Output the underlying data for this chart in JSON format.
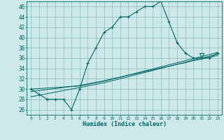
{
  "xlabel": "Humidex (Indice chaleur)",
  "bg_color": "#cce8e8",
  "grid_color": "#88bbbb",
  "line_color": "#006666",
  "xlim": [
    -0.5,
    23.5
  ],
  "ylim": [
    25,
    47
  ],
  "yticks": [
    26,
    28,
    30,
    32,
    34,
    36,
    38,
    40,
    42,
    44,
    46
  ],
  "xticks": [
    0,
    1,
    2,
    3,
    4,
    5,
    6,
    7,
    8,
    9,
    10,
    11,
    12,
    13,
    14,
    15,
    16,
    17,
    18,
    19,
    20,
    21,
    22,
    23
  ],
  "humidex_curve": [
    30,
    29,
    28,
    28,
    28,
    26,
    30,
    35,
    38,
    41,
    42,
    44,
    44,
    45,
    46,
    46,
    47,
    43,
    39,
    37,
    36,
    36,
    36,
    37
  ],
  "line1": [
    30.0,
    30.1,
    30.2,
    30.3,
    30.4,
    30.5,
    30.6,
    30.9,
    31.2,
    31.5,
    31.9,
    32.3,
    32.7,
    33.1,
    33.5,
    33.9,
    34.3,
    34.7,
    35.1,
    35.5,
    35.9,
    36.3,
    36.7,
    37.1
  ],
  "line2": [
    29.5,
    29.7,
    29.9,
    30.1,
    30.3,
    30.5,
    30.7,
    31.0,
    31.3,
    31.6,
    32.0,
    32.3,
    32.7,
    33.0,
    33.4,
    33.7,
    34.1,
    34.4,
    34.8,
    35.1,
    35.5,
    35.8,
    36.2,
    36.5
  ],
  "line3": [
    28.5,
    28.8,
    29.1,
    29.4,
    29.7,
    30.0,
    30.3,
    30.6,
    30.9,
    31.2,
    31.6,
    32.0,
    32.4,
    32.8,
    33.2,
    33.6,
    34.0,
    34.4,
    34.8,
    35.2,
    35.6,
    36.0,
    36.4,
    36.8
  ],
  "triangle_x": 21,
  "triangle_y": 36.5
}
